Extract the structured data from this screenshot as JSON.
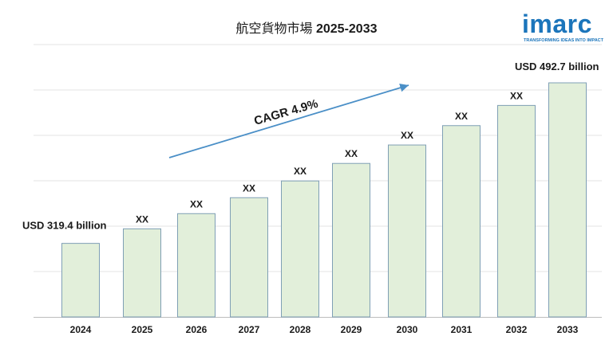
{
  "header": {
    "title_ja": "航空貨物市場",
    "title_years": "2025-2033"
  },
  "logo": {
    "word": "imarc",
    "tagline": "TRANSFORMING IDEAS INTO IMPACT"
  },
  "chart_data": {
    "type": "bar",
    "categories": [
      "2024",
      "2025",
      "2026",
      "2027",
      "2028",
      "2029",
      "2030",
      "2031",
      "2032",
      "2033"
    ],
    "values": [
      319.4,
      335.1,
      351.5,
      368.7,
      386.8,
      405.7,
      425.6,
      446.5,
      468.3,
      492.7
    ],
    "data_labels": [
      "USD 319.4 billion",
      "XX",
      "XX",
      "XX",
      "XX",
      "XX",
      "XX",
      "XX",
      "XX",
      "USD 492.7 billion"
    ],
    "annotation": "CAGR 4.9%",
    "ylim": [
      240,
      510
    ],
    "grid": true,
    "bar_fill": "#e2efda",
    "bar_stroke": "#7f9fb5",
    "arrow_color": "#4a8fc7",
    "title": "",
    "xlabel": "",
    "ylabel": ""
  }
}
